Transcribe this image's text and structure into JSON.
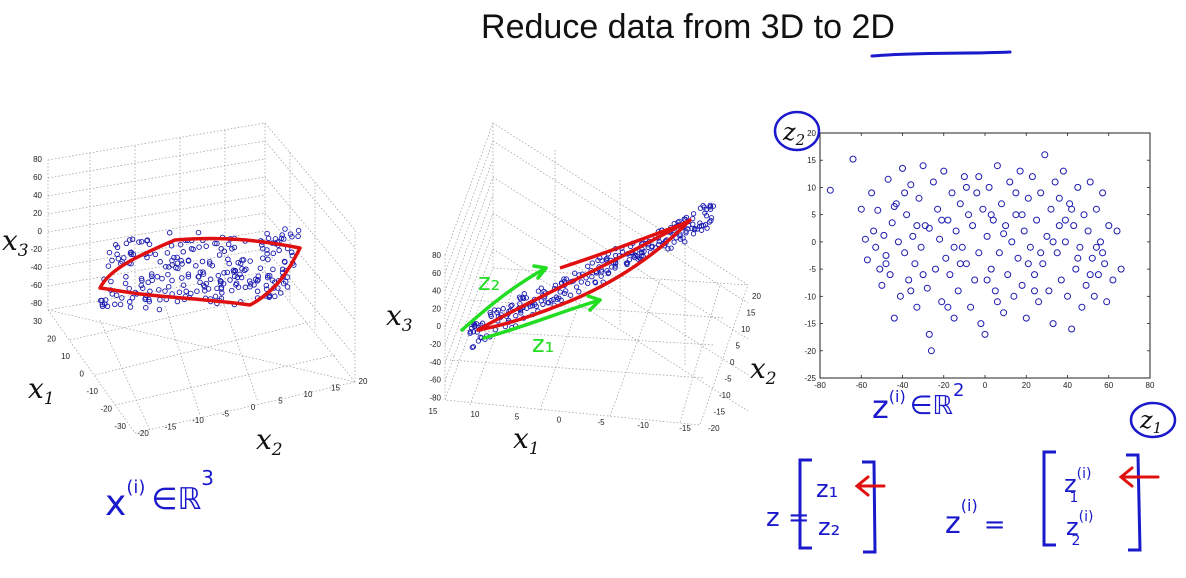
{
  "title": {
    "prefix": "Reduce data from ",
    "highlight": "3D to 2D"
  },
  "plot3d_left": {
    "xlabel": "x",
    "xsub": "1",
    "ylabel": "x",
    "ysub": "2",
    "zlabel": "x",
    "zsub": "3",
    "z_ticks": [
      "80",
      "60",
      "40",
      "20",
      "0",
      "-20",
      "-40",
      "-60",
      "-80"
    ],
    "x1_ticks": [
      "30",
      "20",
      "10",
      "0",
      "-10",
      "-20",
      "-30"
    ],
    "x2_ticks": [
      "-20",
      "-15",
      "-10",
      "-5",
      "0",
      "5",
      "10",
      "15",
      "20"
    ]
  },
  "plot3d_mid": {
    "xlabel": "x",
    "xsub": "1",
    "ylabel": "x",
    "ysub": "2",
    "zlabel": "x",
    "zsub": "3",
    "z_ticks": [
      "80",
      "60",
      "40",
      "20",
      "0",
      "-20",
      "-40",
      "-60",
      "-80"
    ],
    "x1_ticks": [
      "15",
      "10",
      "5",
      "0",
      "-5",
      "-10",
      "-15"
    ],
    "x2_ticks": [
      "20",
      "15",
      "10",
      "5",
      "0",
      "-5",
      "-10",
      "-15",
      "-20"
    ],
    "annot_z1": "z₁",
    "annot_z2": "z₂"
  },
  "scatter": {
    "xlabel": "z",
    "xsub": "1",
    "ylabel": "z",
    "ysub": "2"
  },
  "chart_data": {
    "type": "scatter",
    "x_ticks": [
      "-80",
      "-60",
      "-40",
      "-20",
      "0",
      "20",
      "40",
      "60",
      "80"
    ],
    "y_ticks": [
      "20",
      "15",
      "10",
      "5",
      "0",
      "-5",
      "-10",
      "-15",
      "-20",
      "-25"
    ],
    "xlim": [
      -80,
      80
    ],
    "ylim": [
      -25,
      20
    ],
    "series": [
      {
        "points": [
          [
            -75,
            9.5
          ],
          [
            -64,
            15.2
          ],
          [
            -60,
            6
          ],
          [
            -58,
            0.5
          ],
          [
            -57,
            -3.3
          ],
          [
            -55,
            9
          ],
          [
            -54,
            2
          ],
          [
            -52,
            5.8
          ],
          [
            -51,
            -5
          ],
          [
            -50,
            -8
          ],
          [
            -49,
            1.2
          ],
          [
            -48,
            -2.5
          ],
          [
            -47,
            11.5
          ],
          [
            -46,
            -6
          ],
          [
            -45,
            3.5
          ],
          [
            -44,
            -14
          ],
          [
            -43,
            7
          ],
          [
            -42,
            0
          ],
          [
            -41,
            -10
          ],
          [
            -40,
            13.5
          ],
          [
            -39,
            -2
          ],
          [
            -38,
            5
          ],
          [
            -37,
            -7
          ],
          [
            -36,
            10.5
          ],
          [
            -35,
            1
          ],
          [
            -34,
            -4
          ],
          [
            -33,
            -12
          ],
          [
            -32,
            8
          ],
          [
            -31,
            -1
          ],
          [
            -30,
            14
          ],
          [
            -29,
            3
          ],
          [
            -28,
            -8.5
          ],
          [
            -27,
            -17
          ],
          [
            -26,
            -20
          ],
          [
            -25,
            11
          ],
          [
            -24,
            -5
          ],
          [
            -23,
            6
          ],
          [
            -22,
            0.5
          ],
          [
            -21,
            -11
          ],
          [
            -20,
            13
          ],
          [
            -19,
            -3
          ],
          [
            -18,
            4
          ],
          [
            -17,
            -6
          ],
          [
            -16,
            9
          ],
          [
            -15,
            -14
          ],
          [
            -14,
            2
          ],
          [
            -13,
            -9
          ],
          [
            -12,
            7
          ],
          [
            -11,
            -1
          ],
          [
            -10,
            12
          ],
          [
            -9,
            -4
          ],
          [
            -8,
            5
          ],
          [
            -7,
            -12
          ],
          [
            -6,
            3
          ],
          [
            -5,
            -7
          ],
          [
            -4,
            9
          ],
          [
            -3,
            -2
          ],
          [
            -2,
            -15
          ],
          [
            -1,
            6
          ],
          [
            0,
            -17
          ],
          [
            1,
            1
          ],
          [
            2,
            10
          ],
          [
            3,
            -5
          ],
          [
            4,
            4
          ],
          [
            5,
            -9
          ],
          [
            6,
            14
          ],
          [
            7,
            -2
          ],
          [
            8,
            7
          ],
          [
            9,
            -13
          ],
          [
            10,
            3
          ],
          [
            11,
            -6
          ],
          [
            12,
            11
          ],
          [
            13,
            0
          ],
          [
            14,
            -10
          ],
          [
            15,
            5
          ],
          [
            16,
            -3
          ],
          [
            17,
            13
          ],
          [
            18,
            -8
          ],
          [
            19,
            2
          ],
          [
            20,
            -14
          ],
          [
            21,
            8
          ],
          [
            22,
            -1
          ],
          [
            23,
            12
          ],
          [
            24,
            -6
          ],
          [
            25,
            4
          ],
          [
            26,
            -11
          ],
          [
            27,
            9
          ],
          [
            28,
            -4
          ],
          [
            29,
            16
          ],
          [
            30,
            1
          ],
          [
            31,
            -9
          ],
          [
            32,
            6
          ],
          [
            33,
            -15
          ],
          [
            34,
            11
          ],
          [
            35,
            -2
          ],
          [
            36,
            3
          ],
          [
            37,
            -7
          ],
          [
            38,
            13
          ],
          [
            39,
            0
          ],
          [
            40,
            -10
          ],
          [
            41,
            7
          ],
          [
            42,
            -16
          ],
          [
            43,
            3
          ],
          [
            44,
            -5
          ],
          [
            45,
            10
          ],
          [
            46,
            -1
          ],
          [
            47,
            -12
          ],
          [
            48,
            5
          ],
          [
            49,
            -8
          ],
          [
            50,
            2
          ],
          [
            51,
            11
          ],
          [
            52,
            -3
          ],
          [
            53,
            -10
          ],
          [
            54,
            6
          ],
          [
            55,
            -6
          ],
          [
            56,
            0
          ],
          [
            57,
            9
          ],
          [
            58,
            -4
          ],
          [
            59,
            -11
          ],
          [
            60,
            3
          ],
          [
            62,
            -7
          ],
          [
            64,
            2
          ],
          [
            66,
            -5
          ],
          [
            -53,
            -1
          ],
          [
            -44,
            6.5
          ],
          [
            -36,
            -9
          ],
          [
            -27,
            2.5
          ],
          [
            -18,
            -12
          ],
          [
            -9,
            10
          ],
          [
            1,
            -7
          ],
          [
            9,
            1.5
          ],
          [
            18,
            5
          ],
          [
            27,
            -2
          ],
          [
            36,
            8
          ],
          [
            45,
            -3
          ],
          [
            54,
            -1
          ],
          [
            -39,
            9
          ],
          [
            -30,
            -6
          ],
          [
            -21,
            4
          ],
          [
            -12,
            -4
          ],
          [
            -3,
            12
          ],
          [
            6,
            -11
          ],
          [
            15,
            9
          ],
          [
            24,
            -9
          ],
          [
            33,
            0
          ],
          [
            42,
            6
          ],
          [
            51,
            -6
          ],
          [
            -48,
            -4
          ],
          [
            -33,
            3
          ],
          [
            -15,
            -1
          ],
          [
            3,
            5
          ],
          [
            21,
            -4
          ],
          [
            39,
            4
          ],
          [
            57,
            -2
          ]
        ]
      }
    ]
  },
  "annotations": {
    "x_vec": "x",
    "x_sup": "(i)",
    "x_set": "∈ℝ",
    "x_dim": "3",
    "z_vec": "z",
    "z_sup": "(i)",
    "z_set": "∈ℝ",
    "z_dim": "2",
    "z_def_lhs": "z =",
    "z_def_e1": "z₁",
    "z_def_e2": "z₂",
    "zi_def_lhs": "z",
    "zi_def_sup": "(i)",
    "zi_def_eq": "=",
    "zi_e1": "z",
    "zi_e1_sup": "(i)",
    "zi_e1_sub": "1",
    "zi_e2": "z",
    "zi_e2_sup": "(i)",
    "zi_e2_sub": "2"
  },
  "colors": {
    "red": "#e01010",
    "green": "#22dd22",
    "blue": "#1a1acc",
    "marker": "#1b1bb0"
  }
}
